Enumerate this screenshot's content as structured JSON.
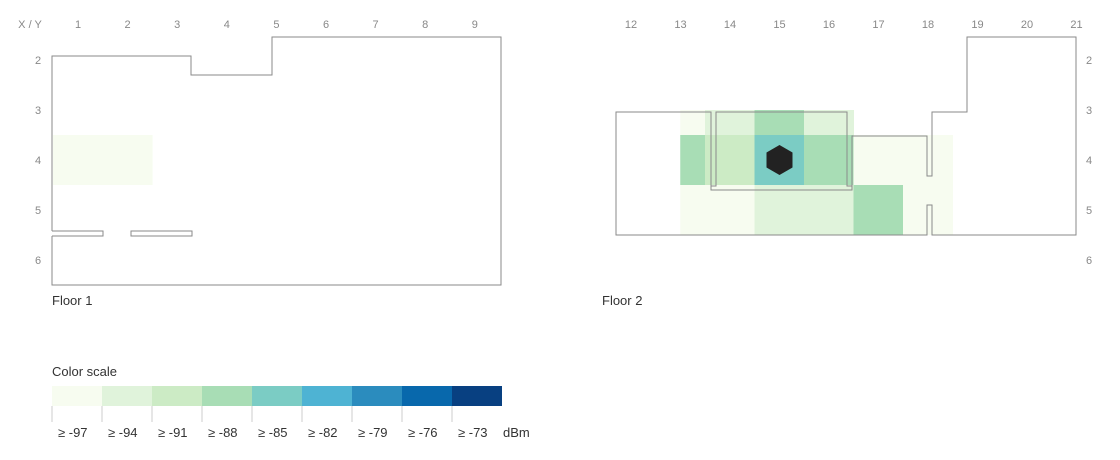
{
  "chart_data": {
    "type": "heatmap",
    "axis_corner_label": "X / Y",
    "unit": "dBm",
    "legend": {
      "title": "Color scale",
      "steps": [
        {
          "label": "≥ -97",
          "value": -97,
          "color": "#f7fcf0"
        },
        {
          "label": "≥ -94",
          "value": -94,
          "color": "#e0f3db"
        },
        {
          "label": "≥ -91",
          "value": -91,
          "color": "#ccebc5"
        },
        {
          "label": "≥ -88",
          "value": -88,
          "color": "#a8ddb5"
        },
        {
          "label": "≥ -85",
          "value": -85,
          "color": "#7bccc4"
        },
        {
          "label": "≥ -82",
          "value": -82,
          "color": "#4eb3d3"
        },
        {
          "label": "≥ -79",
          "value": -79,
          "color": "#2b8cbe"
        },
        {
          "label": "≥ -76",
          "value": -76,
          "color": "#0868ac"
        },
        {
          "label": "≥ -73",
          "value": -73,
          "color": "#084081"
        }
      ]
    },
    "floors": [
      {
        "name": "Floor 1",
        "x_ticks": [
          1,
          2,
          3,
          4,
          5,
          6,
          7,
          8,
          9
        ],
        "y_ticks": [
          2,
          3,
          4,
          5,
          6
        ],
        "y_tick_side": "left",
        "cells": [
          {
            "x": 1,
            "y": 4,
            "dbm": -97
          },
          {
            "x": 2,
            "y": 4,
            "dbm": -97
          }
        ]
      },
      {
        "name": "Floor 2",
        "x_ticks": [
          12,
          13,
          14,
          15,
          16,
          17,
          18,
          19,
          20,
          21
        ],
        "y_ticks": [
          2,
          3,
          4,
          5,
          6
        ],
        "y_tick_side": "right",
        "access_point": {
          "x": 15,
          "y": 4
        },
        "cells": [
          {
            "x": 13.5,
            "y": 3.5,
            "dbm": -97
          },
          {
            "x": 14,
            "y": 3.5,
            "dbm": -94
          },
          {
            "x": 15,
            "y": 3.5,
            "dbm": -88
          },
          {
            "x": 16,
            "y": 3.5,
            "dbm": -94
          },
          {
            "x": 13.5,
            "y": 4,
            "dbm": -88
          },
          {
            "x": 14,
            "y": 4,
            "dbm": -91
          },
          {
            "x": 15,
            "y": 4,
            "dbm": -85
          },
          {
            "x": 16,
            "y": 4,
            "dbm": -88
          },
          {
            "x": 17,
            "y": 4,
            "dbm": -97
          },
          {
            "x": 18,
            "y": 4,
            "dbm": -97
          },
          {
            "x": 13.5,
            "y": 5,
            "dbm": -97
          },
          {
            "x": 14,
            "y": 5,
            "dbm": -97
          },
          {
            "x": 15,
            "y": 5,
            "dbm": -94
          },
          {
            "x": 16,
            "y": 5,
            "dbm": -94
          },
          {
            "x": 17,
            "y": 5,
            "dbm": -88
          },
          {
            "x": 18,
            "y": 5,
            "dbm": -97
          }
        ]
      }
    ]
  }
}
